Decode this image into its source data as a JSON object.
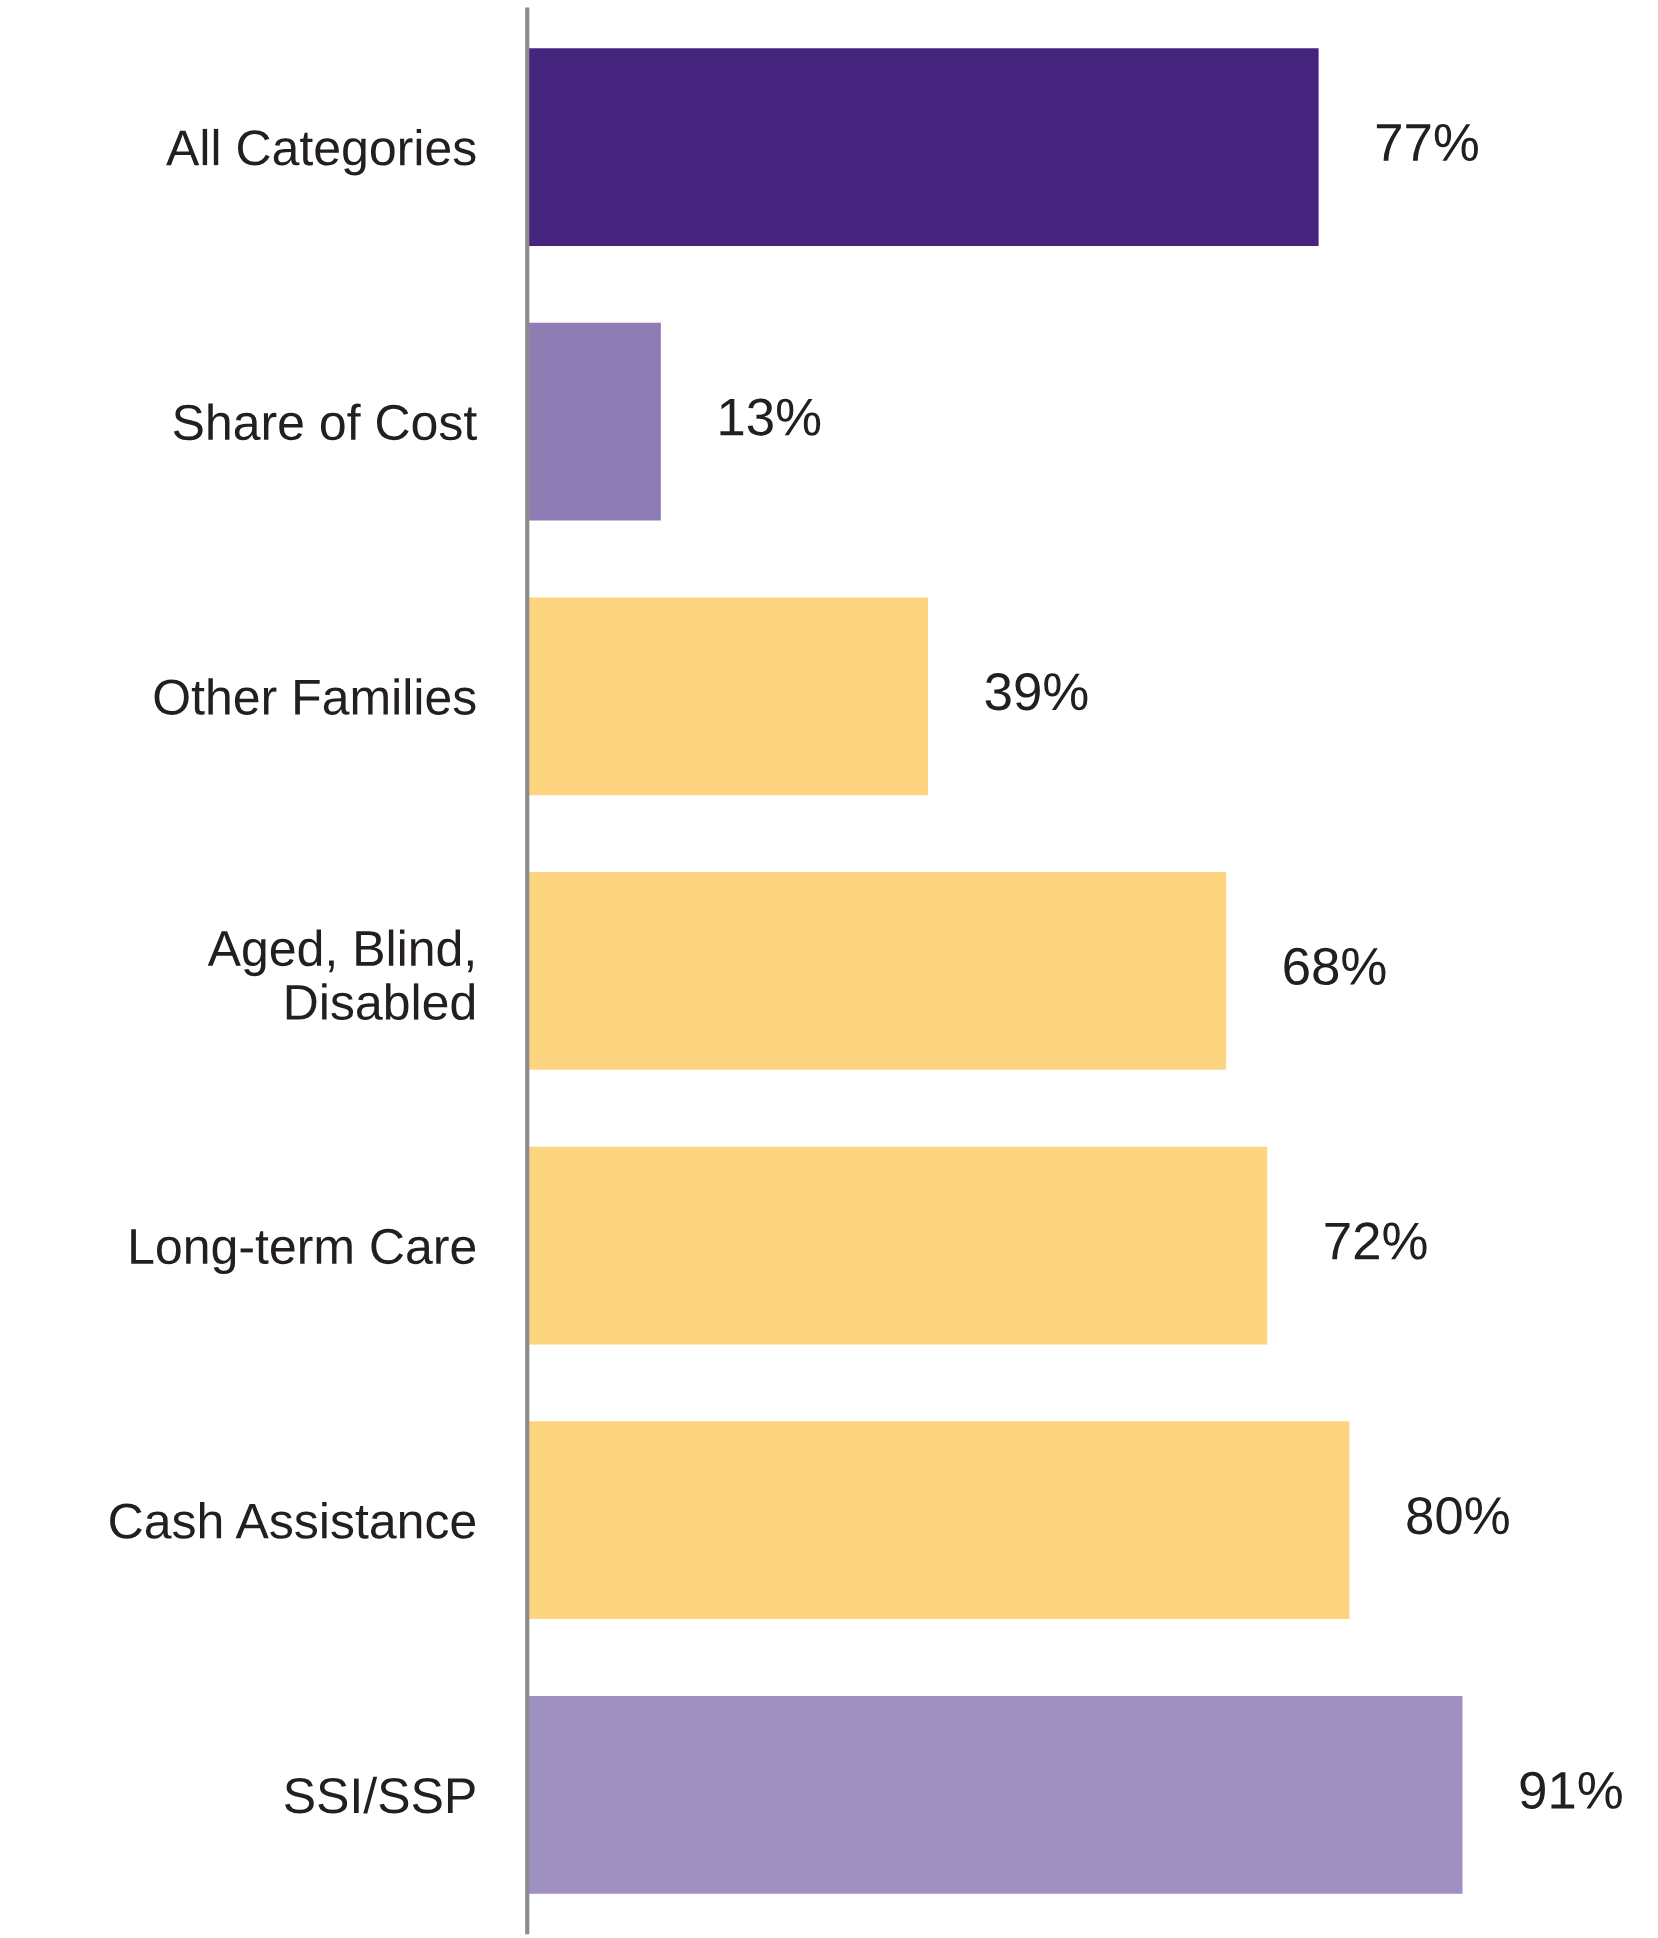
{
  "chart_data": {
    "type": "bar",
    "orientation": "horizontal",
    "categories": [
      "All Categories",
      "Share of Cost",
      "Other Families",
      "Aged, Blind,\nDisabled",
      "Long-term Care",
      "Cash Assistance",
      "SSI/SSP"
    ],
    "values": [
      77,
      13,
      39,
      68,
      72,
      80,
      91
    ],
    "colors": [
      "#45247d",
      "#8e7cb4",
      "#fdd47f",
      "#fdd47f",
      "#fdd47f",
      "#fdd47f",
      "#9e90c0"
    ],
    "value_labels": [
      "77%",
      "13%",
      "39%",
      "68%",
      "72%",
      "80%",
      "91%"
    ],
    "grid": false,
    "legend": false,
    "tick_labels": "y"
  }
}
